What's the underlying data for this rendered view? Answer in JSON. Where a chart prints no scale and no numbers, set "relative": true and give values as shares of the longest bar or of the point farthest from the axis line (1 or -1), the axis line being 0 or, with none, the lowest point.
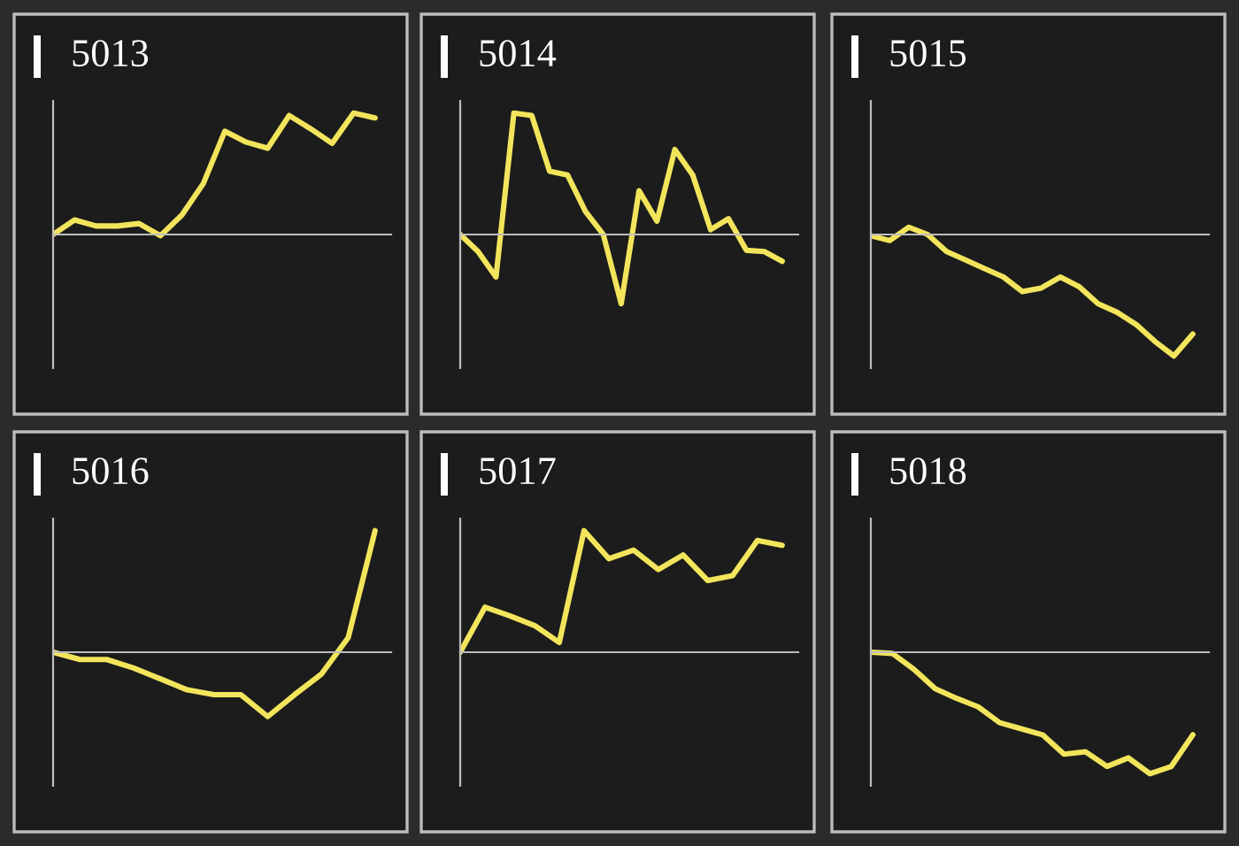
{
  "chart_data": [
    {
      "type": "line",
      "title": "5013",
      "relative": true,
      "color": "#f2e55c",
      "categories": [
        null,
        null,
        null,
        null,
        null,
        null,
        null,
        null,
        null,
        null,
        null,
        null,
        null,
        null,
        null,
        null
      ],
      "values": [
        0,
        0.12,
        0.07,
        0.07,
        0.09,
        -0.01,
        0.16,
        0.42,
        0.85,
        0.76,
        0.71,
        0.98,
        0.87,
        0.75,
        1.0,
        0.96
      ]
    },
    {
      "type": "line",
      "title": "5014",
      "relative": true,
      "color": "#f2e55c",
      "categories": [
        null,
        null,
        null,
        null,
        null,
        null,
        null,
        null,
        null,
        null,
        null,
        null,
        null,
        null,
        null,
        null,
        null,
        null,
        null
      ],
      "values": [
        0,
        -0.14,
        -0.35,
        1.0,
        0.98,
        0.52,
        0.49,
        0.19,
        0,
        -0.57,
        0.36,
        0.11,
        0.7,
        0.49,
        0.04,
        0.13,
        -0.13,
        -0.14,
        -0.22
      ]
    },
    {
      "type": "line",
      "title": "5015",
      "relative": true,
      "color": "#f2e55c",
      "categories": [
        null,
        null,
        null,
        null,
        null,
        null,
        null,
        null,
        null,
        null,
        null,
        null,
        null,
        null,
        null,
        null,
        null,
        null
      ],
      "values": [
        -0.01,
        -0.05,
        0.06,
        0,
        -0.14,
        -0.21,
        -0.28,
        -0.35,
        -0.47,
        -0.44,
        -0.35,
        -0.43,
        -0.57,
        -0.64,
        -0.74,
        -0.88,
        -1.0,
        -0.82
      ]
    },
    {
      "type": "line",
      "title": "5016",
      "relative": true,
      "color": "#f2e55c",
      "categories": [
        null,
        null,
        null,
        null,
        null,
        null,
        null,
        null,
        null,
        null,
        null,
        null,
        null
      ],
      "values": [
        0,
        -0.06,
        -0.06,
        -0.13,
        -0.22,
        -0.31,
        -0.35,
        -0.35,
        -0.53,
        -0.35,
        -0.18,
        0.12,
        1.0
      ]
    },
    {
      "type": "line",
      "title": "5017",
      "relative": true,
      "color": "#f2e55c",
      "categories": [
        null,
        null,
        null,
        null,
        null,
        null,
        null,
        null,
        null,
        null,
        null,
        null,
        null,
        null
      ],
      "values": [
        0,
        0.37,
        0.3,
        0.22,
        0.08,
        1.0,
        0.77,
        0.84,
        0.68,
        0.8,
        0.59,
        0.63,
        0.92,
        0.88
      ]
    },
    {
      "type": "line",
      "title": "5018",
      "relative": true,
      "color": "#f2e55c",
      "categories": [
        null,
        null,
        null,
        null,
        null,
        null,
        null,
        null,
        null,
        null,
        null,
        null,
        null,
        null,
        null,
        null
      ],
      "values": [
        0,
        -0.01,
        -0.14,
        -0.3,
        -0.38,
        -0.45,
        -0.58,
        -0.63,
        -0.68,
        -0.84,
        -0.82,
        -0.94,
        -0.87,
        -1.0,
        -0.94,
        -0.68
      ]
    }
  ]
}
